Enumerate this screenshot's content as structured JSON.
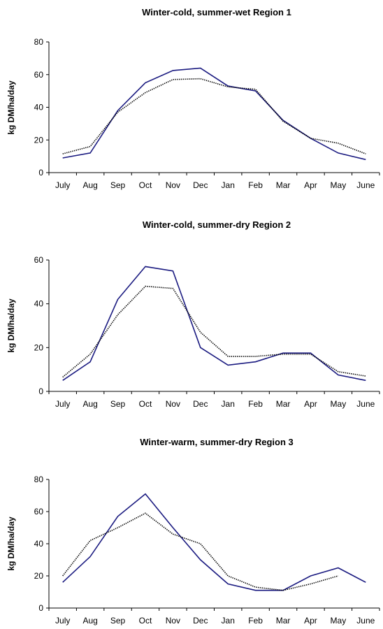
{
  "chart_data": [
    {
      "type": "line",
      "title": "Winter-cold, summer-wet Region 1",
      "ylabel": "kg DM/ha/day",
      "xlabel": "",
      "categories": [
        "July",
        "Aug",
        "Sep",
        "Oct",
        "Nov",
        "Dec",
        "Jan",
        "Feb",
        "Mar",
        "Apr",
        "May",
        "June"
      ],
      "ylim": [
        0,
        80
      ],
      "yticks": [
        0,
        20,
        40,
        60,
        80
      ],
      "legend": "none",
      "series": [
        {
          "style": "solid",
          "color": "#1a1a80",
          "values": [
            9,
            12,
            38,
            55,
            62.5,
            64,
            53,
            50,
            32,
            21,
            12,
            8
          ]
        },
        {
          "style": "dotted",
          "color": "#000000",
          "values": [
            11.5,
            16,
            37,
            49,
            57,
            57.5,
            52.5,
            51,
            31.5,
            21,
            18,
            11.5
          ]
        }
      ]
    },
    {
      "type": "line",
      "title": "Winter-cold, summer-dry Region 2",
      "ylabel": "kg DM/ha/day",
      "xlabel": "",
      "categories": [
        "July",
        "Aug",
        "Sep",
        "Oct",
        "Nov",
        "Dec",
        "Jan",
        "Feb",
        "Mar",
        "Apr",
        "May",
        "June"
      ],
      "ylim": [
        0,
        60
      ],
      "yticks": [
        0,
        20,
        40,
        60
      ],
      "legend": "none",
      "series": [
        {
          "style": "solid",
          "color": "#1a1a80",
          "values": [
            5,
            13.5,
            42,
            57,
            55,
            20,
            12,
            13.5,
            17.5,
            17.5,
            7.5,
            5
          ]
        },
        {
          "style": "dotted",
          "color": "#000000",
          "values": [
            6.5,
            17,
            35,
            48,
            47,
            27,
            16,
            16,
            17,
            17,
            9,
            7
          ]
        }
      ]
    },
    {
      "type": "line",
      "title": "Winter-warm, summer-dry Region  3",
      "ylabel": "kg DM/ha/day",
      "xlabel": "",
      "categories": [
        "July",
        "Aug",
        "Sep",
        "Oct",
        "Nov",
        "Dec",
        "Jan",
        "Feb",
        "Mar",
        "Apr",
        "May",
        "June"
      ],
      "ylim": [
        0,
        80
      ],
      "yticks": [
        0,
        20,
        40,
        60,
        80
      ],
      "legend": "none",
      "series": [
        {
          "style": "solid",
          "color": "#1a1a80",
          "values": [
            16,
            32,
            57,
            71,
            50,
            30,
            15,
            11,
            11,
            20,
            25,
            16
          ]
        },
        {
          "style": "dotted",
          "color": "#000000",
          "values": [
            20,
            42,
            50,
            59,
            46,
            40,
            20,
            13,
            11,
            15,
            20,
            null
          ]
        }
      ]
    }
  ]
}
